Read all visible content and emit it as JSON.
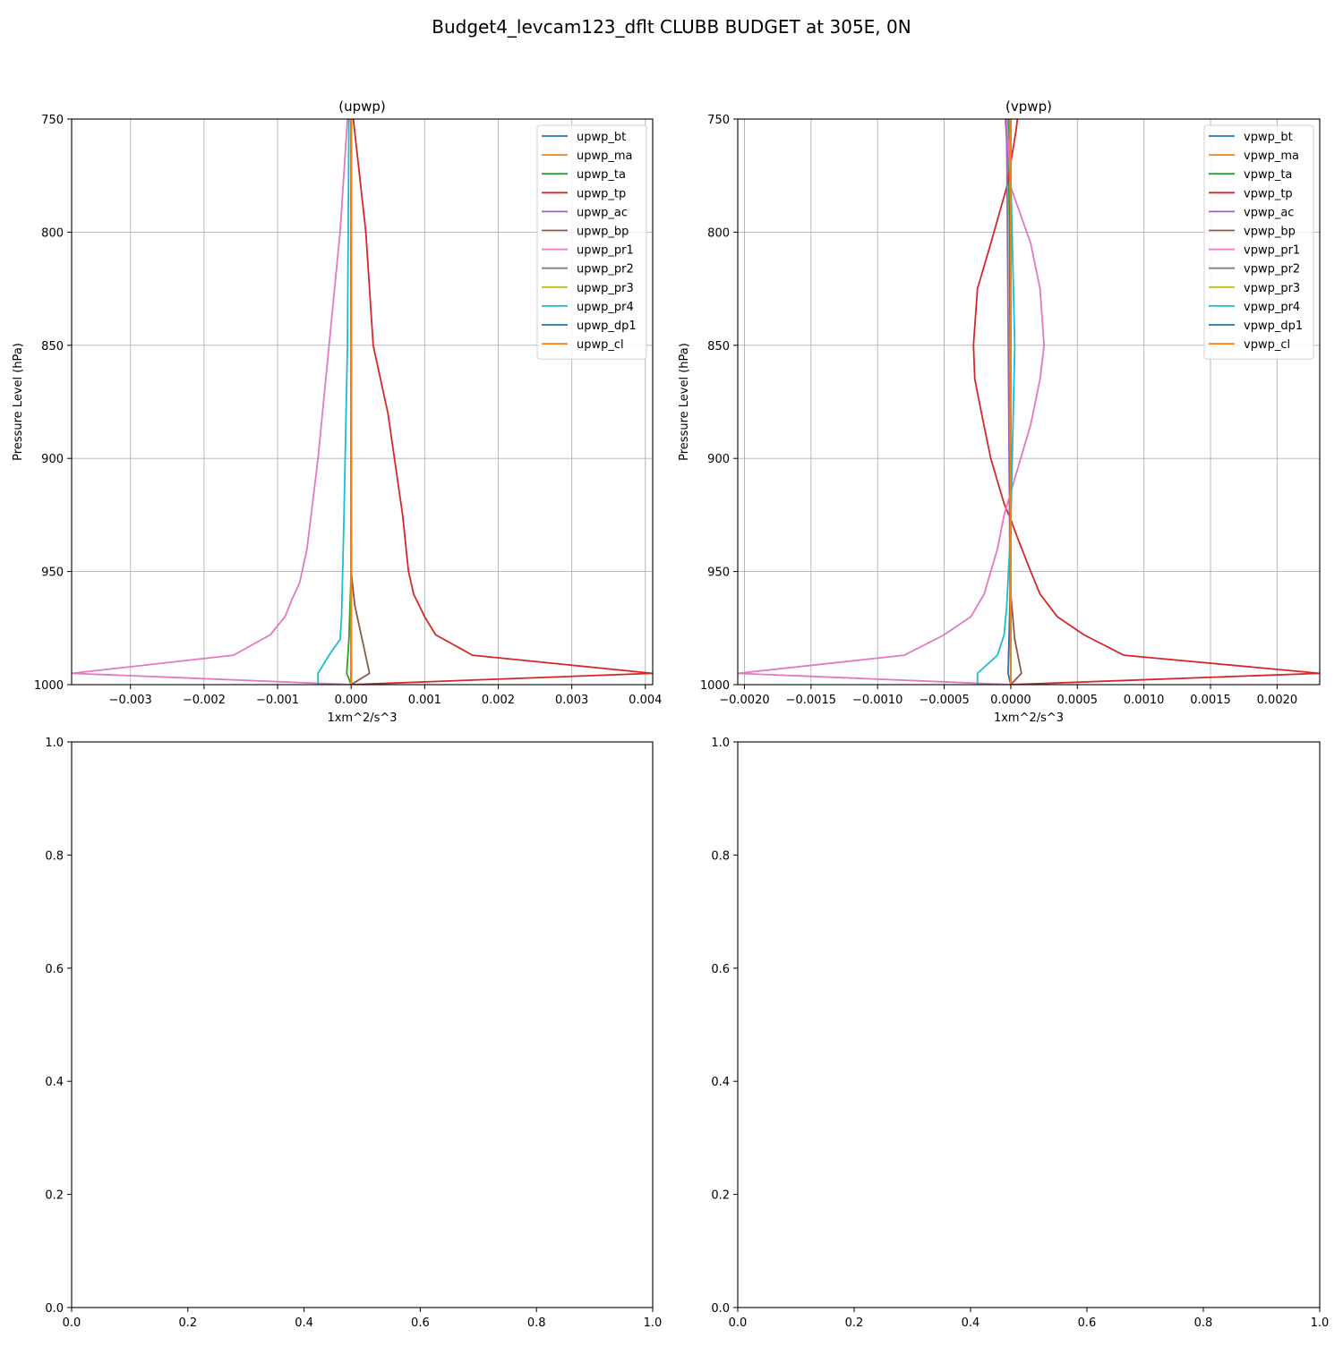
{
  "figure": {
    "suptitle": "Budget4_levcam123_dflt CLUBB BUDGET at 305E, 0N"
  },
  "colors": [
    "#1f77b4",
    "#ff7f0e",
    "#2ca02c",
    "#d62728",
    "#9467bd",
    "#8c564b",
    "#e377c2",
    "#7f7f7f",
    "#bcbd22",
    "#17becf",
    "#1f77b4",
    "#ff7f0e"
  ],
  "chart_data": [
    {
      "type": "line",
      "title": "(upwp)",
      "xlabel": "1xm^2/s^3",
      "ylabel": "Pressure Level (hPa)",
      "xlim": [
        -0.0038,
        0.0041
      ],
      "ylim": [
        1000,
        750
      ],
      "xticks": [
        -0.003,
        -0.002,
        -0.001,
        0.0,
        0.001,
        0.002,
        0.003,
        0.004
      ],
      "xtick_labels": [
        "−0.003",
        "−0.002",
        "−0.001",
        "0.000",
        "0.001",
        "0.002",
        "0.003",
        "0.004"
      ],
      "yticks": [
        750,
        800,
        850,
        900,
        950,
        1000
      ],
      "ytick_labels": [
        "750",
        "800",
        "850",
        "900",
        "950",
        "1000"
      ],
      "grid": true,
      "legend_loc": "top-right",
      "series": [
        {
          "name": "upwp_bt",
          "points": [
            [
              0,
              750
            ],
            [
              0,
              850
            ],
            [
              0,
              950
            ],
            [
              0,
              995
            ],
            [
              0,
              1000
            ]
          ]
        },
        {
          "name": "upwp_ma",
          "points": [
            [
              0,
              750
            ],
            [
              0,
              850
            ],
            [
              0,
              950
            ],
            [
              0,
              995
            ],
            [
              0,
              1000
            ]
          ]
        },
        {
          "name": "upwp_ta",
          "points": [
            [
              0,
              750
            ],
            [
              0,
              950
            ],
            [
              -3e-05,
              980
            ],
            [
              -6e-05,
              995
            ],
            [
              0,
              1000
            ]
          ]
        },
        {
          "name": "upwp_tp",
          "points": [
            [
              3e-05,
              750
            ],
            [
              0.0002,
              800
            ],
            [
              0.0003,
              850
            ],
            [
              0.0005,
              880
            ],
            [
              0.0007,
              925
            ],
            [
              0.00078,
              950
            ],
            [
              0.00085,
              960
            ],
            [
              0.001,
              970
            ],
            [
              0.00115,
              978
            ],
            [
              0.00165,
              987
            ],
            [
              0.0041,
              995
            ],
            [
              0,
              1000
            ]
          ]
        },
        {
          "name": "upwp_ac",
          "points": [
            [
              0,
              750
            ],
            [
              0,
              950
            ],
            [
              0,
              1000
            ]
          ]
        },
        {
          "name": "upwp_bp",
          "points": [
            [
              0,
              750
            ],
            [
              0,
              950
            ],
            [
              5e-05,
              965
            ],
            [
              0.00015,
              980
            ],
            [
              0.00025,
              995
            ],
            [
              0,
              1000
            ]
          ]
        },
        {
          "name": "upwp_pr1",
          "points": [
            [
              -5e-05,
              750
            ],
            [
              -0.00015,
              800
            ],
            [
              -0.0003,
              850
            ],
            [
              -0.00045,
              900
            ],
            [
              -0.0006,
              940
            ],
            [
              -0.0007,
              955
            ],
            [
              -0.0008,
              962
            ],
            [
              -0.0009,
              970
            ],
            [
              -0.0011,
              978
            ],
            [
              -0.0016,
              987
            ],
            [
              -0.0038,
              995
            ],
            [
              0,
              1000
            ]
          ]
        },
        {
          "name": "upwp_pr2",
          "points": [
            [
              0,
              750
            ],
            [
              0,
              950
            ],
            [
              0,
              1000
            ]
          ]
        },
        {
          "name": "upwp_pr3",
          "points": [
            [
              0,
              750
            ],
            [
              0,
              950
            ],
            [
              0,
              1000
            ]
          ]
        },
        {
          "name": "upwp_pr4",
          "points": [
            [
              -3e-05,
              750
            ],
            [
              -5e-05,
              850
            ],
            [
              -0.0001,
              930
            ],
            [
              -0.00013,
              970
            ],
            [
              -0.00015,
              980
            ],
            [
              -0.0003,
              987
            ],
            [
              -0.00045,
              995
            ],
            [
              -0.00045,
              1000
            ]
          ]
        },
        {
          "name": "upwp_dp1",
          "points": [
            [
              0,
              750
            ],
            [
              0,
              950
            ],
            [
              0,
              1000
            ]
          ]
        },
        {
          "name": "upwp_cl",
          "points": [
            [
              0,
              750
            ],
            [
              0,
              950
            ],
            [
              0,
              1000
            ]
          ]
        }
      ]
    },
    {
      "type": "line",
      "title": "(vpwp)",
      "xlabel": "1xm^2/s^3",
      "ylabel": "Pressure Level (hPa)",
      "xlim": [
        -0.00205,
        0.00232
      ],
      "ylim": [
        1000,
        750
      ],
      "xticks": [
        -0.002,
        -0.0015,
        -0.001,
        -0.0005,
        0.0,
        0.0005,
        0.001,
        0.0015,
        0.002
      ],
      "xtick_labels": [
        "−0.0020",
        "−0.0015",
        "−0.0010",
        "−0.0005",
        "0.0000",
        "0.0005",
        "0.0010",
        "0.0015",
        "0.0020"
      ],
      "yticks": [
        750,
        800,
        850,
        900,
        950,
        1000
      ],
      "ytick_labels": [
        "750",
        "800",
        "850",
        "900",
        "950",
        "1000"
      ],
      "grid": true,
      "legend_loc": "top-right",
      "series": [
        {
          "name": "vpwp_bt",
          "points": [
            [
              0,
              750
            ],
            [
              0,
              950
            ],
            [
              -2e-05,
              995
            ],
            [
              0,
              1000
            ]
          ]
        },
        {
          "name": "vpwp_ma",
          "points": [
            [
              0,
              750
            ],
            [
              0,
              950
            ],
            [
              0,
              1000
            ]
          ]
        },
        {
          "name": "vpwp_ta",
          "points": [
            [
              -2e-05,
              750
            ],
            [
              -1e-05,
              800
            ],
            [
              0,
              900
            ],
            [
              0,
              1000
            ]
          ]
        },
        {
          "name": "vpwp_tp",
          "points": [
            [
              5e-05,
              750
            ],
            [
              4e-05,
              755
            ],
            [
              -3e-05,
              780
            ],
            [
              -0.00015,
              805
            ],
            [
              -0.00025,
              825
            ],
            [
              -0.00028,
              850
            ],
            [
              -0.00027,
              865
            ],
            [
              -0.00022,
              880
            ],
            [
              -0.00015,
              900
            ],
            [
              -5e-05,
              920
            ],
            [
              0,
              927
            ],
            [
              5e-05,
              935
            ],
            [
              0.00015,
              950
            ],
            [
              0.00022,
              960
            ],
            [
              0.00035,
              970
            ],
            [
              0.00055,
              978
            ],
            [
              0.00085,
              987
            ],
            [
              0.00232,
              995
            ],
            [
              0,
              1000
            ]
          ]
        },
        {
          "name": "vpwp_ac",
          "points": [
            [
              -4e-05,
              750
            ],
            [
              -3e-05,
              760
            ],
            [
              0,
              1000
            ]
          ]
        },
        {
          "name": "vpwp_bp",
          "points": [
            [
              0,
              750
            ],
            [
              0,
              960
            ],
            [
              3e-05,
              980
            ],
            [
              8e-05,
              995
            ],
            [
              0,
              1000
            ]
          ]
        },
        {
          "name": "vpwp_pr1",
          "points": [
            [
              -3e-05,
              750
            ],
            [
              0,
              780
            ],
            [
              0.00015,
              805
            ],
            [
              0.00022,
              825
            ],
            [
              0.00025,
              850
            ],
            [
              0.00022,
              865
            ],
            [
              0.00015,
              885
            ],
            [
              5e-05,
              905
            ],
            [
              -5e-05,
              925
            ],
            [
              -0.0001,
              940
            ],
            [
              -0.00015,
              950
            ],
            [
              -0.0002,
              960
            ],
            [
              -0.0003,
              970
            ],
            [
              -0.0005,
              978
            ],
            [
              -0.0008,
              987
            ],
            [
              -0.00205,
              995
            ],
            [
              0,
              1000
            ]
          ]
        },
        {
          "name": "vpwp_pr2",
          "points": [
            [
              0,
              750
            ],
            [
              0,
              950
            ],
            [
              0,
              1000
            ]
          ]
        },
        {
          "name": "vpwp_pr3",
          "points": [
            [
              0,
              750
            ],
            [
              0,
              950
            ],
            [
              0,
              1000
            ]
          ]
        },
        {
          "name": "vpwp_pr4",
          "points": [
            [
              -1e-05,
              750
            ],
            [
              3e-05,
              850
            ],
            [
              0,
              930
            ],
            [
              -3e-05,
              965
            ],
            [
              -5e-05,
              978
            ],
            [
              -0.0001,
              987
            ],
            [
              -0.00025,
              995
            ],
            [
              -0.00025,
              1000
            ]
          ]
        },
        {
          "name": "vpwp_dp1",
          "points": [
            [
              0,
              750
            ],
            [
              0,
              950
            ],
            [
              0,
              1000
            ]
          ]
        },
        {
          "name": "vpwp_cl",
          "points": [
            [
              0,
              750
            ],
            [
              0,
              950
            ],
            [
              0,
              1000
            ]
          ]
        }
      ]
    },
    {
      "type": "line",
      "title": "",
      "xlim": [
        0,
        1
      ],
      "ylim": [
        0,
        1
      ],
      "xticks": [
        0,
        0.2,
        0.4,
        0.6,
        0.8,
        1
      ],
      "xtick_labels": [
        "0.0",
        "0.2",
        "0.4",
        "0.6",
        "0.8",
        "1.0"
      ],
      "yticks": [
        0,
        0.2,
        0.4,
        0.6,
        0.8,
        1
      ],
      "ytick_labels": [
        "0.0",
        "0.2",
        "0.4",
        "0.6",
        "0.8",
        "1.0"
      ],
      "grid": false,
      "series": []
    },
    {
      "type": "line",
      "title": "",
      "xlim": [
        0,
        1
      ],
      "ylim": [
        0,
        1
      ],
      "xticks": [
        0,
        0.2,
        0.4,
        0.6,
        0.8,
        1
      ],
      "xtick_labels": [
        "0.0",
        "0.2",
        "0.4",
        "0.6",
        "0.8",
        "1.0"
      ],
      "yticks": [
        0,
        0.2,
        0.4,
        0.6,
        0.8,
        1
      ],
      "ytick_labels": [
        "0.0",
        "0.2",
        "0.4",
        "0.6",
        "0.8",
        "1.0"
      ],
      "grid": false,
      "series": []
    }
  ]
}
